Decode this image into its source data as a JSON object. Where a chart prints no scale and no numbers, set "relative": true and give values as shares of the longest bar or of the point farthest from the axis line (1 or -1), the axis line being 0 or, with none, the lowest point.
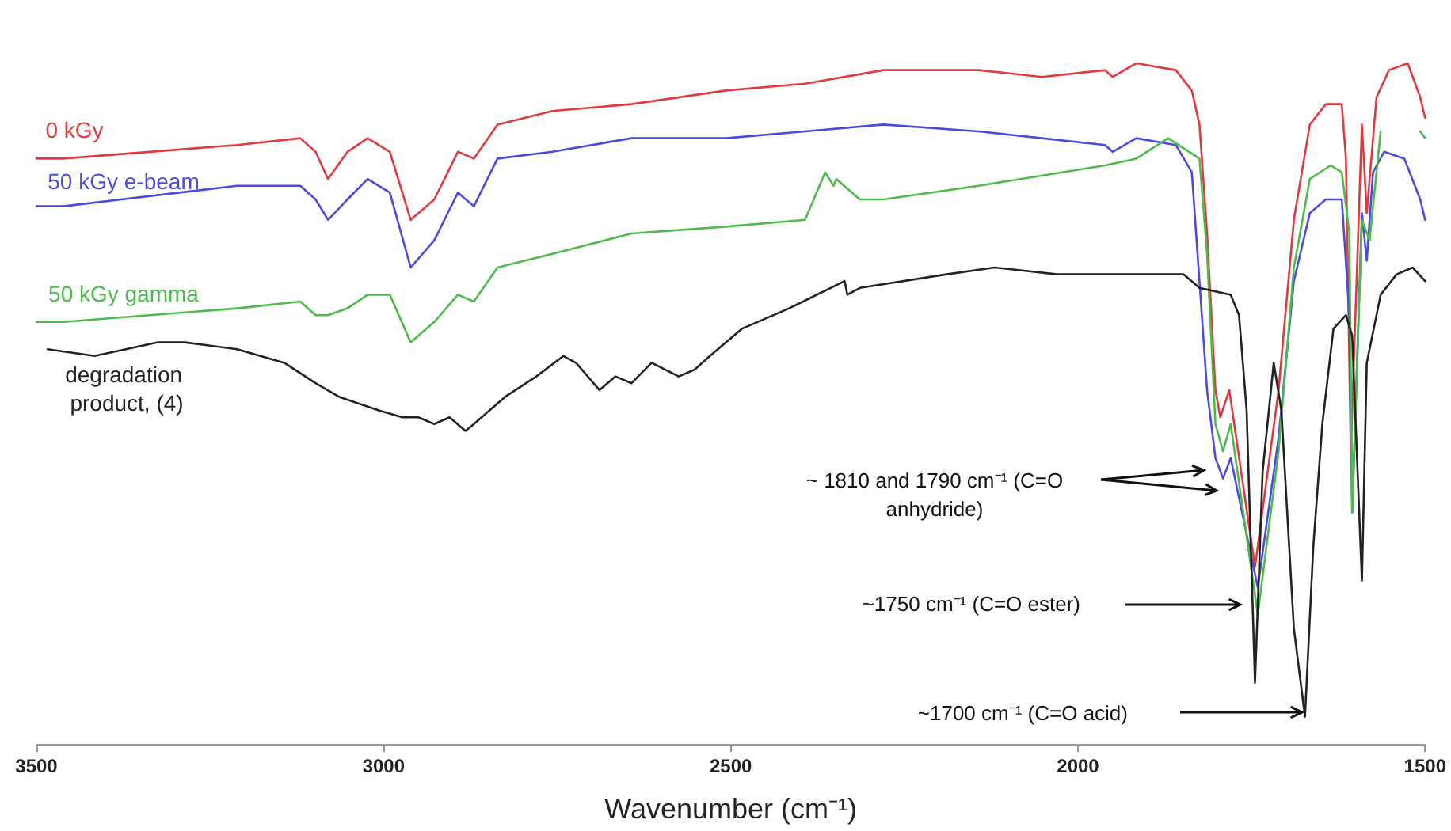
{
  "chart_data": {
    "type": "line",
    "relative": true,
    "xlabel": "Wavenumber (cm⁻¹)",
    "xlim": [
      3500,
      1500
    ],
    "xticks": [
      3500,
      3000,
      2500,
      2000,
      1500
    ],
    "grid": false,
    "legend": false,
    "marker": "none",
    "line_style": "solid",
    "series": [
      {
        "name": "0 kGy",
        "color": "#e0393e",
        "x": [
          3500,
          3461,
          3211,
          3120,
          3098,
          3080,
          3052,
          3023,
          2991,
          2961,
          2927,
          2893,
          2870,
          2836,
          2757,
          2643,
          2507,
          2393,
          2280,
          2143,
          2052,
          1961,
          1950,
          1916,
          1859,
          1836,
          1825,
          1814,
          1802,
          1795,
          1782,
          1745,
          1711,
          1689,
          1666,
          1643,
          1620,
          1614,
          1607,
          1591,
          1584,
          1570,
          1552,
          1525,
          1507,
          1500
        ],
        "values": [
          0.86,
          0.86,
          0.88,
          0.89,
          0.87,
          0.83,
          0.87,
          0.89,
          0.87,
          0.77,
          0.8,
          0.87,
          0.86,
          0.91,
          0.93,
          0.94,
          0.96,
          0.97,
          0.99,
          0.99,
          0.98,
          0.99,
          0.98,
          1.0,
          0.99,
          0.96,
          0.91,
          0.75,
          0.52,
          0.48,
          0.52,
          0.26,
          0.52,
          0.77,
          0.91,
          0.94,
          0.94,
          0.86,
          0.43,
          0.91,
          0.78,
          0.95,
          0.99,
          1.0,
          0.95,
          0.92
        ]
      },
      {
        "name": "50 kGy e-beam",
        "color": "#4a4ae0",
        "x": [
          3500,
          3461,
          3211,
          3120,
          3098,
          3080,
          3052,
          3023,
          2991,
          2961,
          2927,
          2893,
          2870,
          2836,
          2757,
          2643,
          2507,
          2393,
          2280,
          2143,
          2052,
          1961,
          1950,
          1916,
          1859,
          1836,
          1814,
          1802,
          1791,
          1780,
          1741,
          1711,
          1689,
          1666,
          1643,
          1620,
          1609,
          1605,
          1591,
          1584,
          1575,
          1559,
          1530,
          1507,
          1500
        ],
        "values": [
          0.79,
          0.79,
          0.82,
          0.82,
          0.8,
          0.77,
          0.8,
          0.83,
          0.81,
          0.7,
          0.74,
          0.81,
          0.79,
          0.86,
          0.87,
          0.89,
          0.89,
          0.9,
          0.91,
          0.9,
          0.89,
          0.88,
          0.87,
          0.89,
          0.88,
          0.84,
          0.52,
          0.42,
          0.39,
          0.42,
          0.23,
          0.45,
          0.68,
          0.78,
          0.8,
          0.8,
          0.63,
          0.34,
          0.78,
          0.71,
          0.84,
          0.87,
          0.86,
          0.8,
          0.77
        ]
      },
      {
        "name": "50 kGy gamma",
        "color": "#4cbb4c",
        "x": [
          3500,
          3461,
          3211,
          3120,
          3098,
          3080,
          3052,
          3023,
          2991,
          2961,
          2927,
          2893,
          2870,
          2836,
          2757,
          2643,
          2507,
          2393,
          2364,
          2352,
          2348,
          2314,
          2280,
          2143,
          1961,
          1916,
          1870,
          1825,
          1814,
          1802,
          1791,
          1780,
          1741,
          1711,
          1689,
          1666,
          1636,
          1620,
          1609,
          1605,
          1591,
          1580,
          1570,
          1564,
          1540,
          1507,
          1500
        ],
        "values": [
          0.62,
          0.62,
          0.64,
          0.65,
          0.63,
          0.63,
          0.64,
          0.66,
          0.66,
          0.59,
          0.62,
          0.66,
          0.65,
          0.7,
          0.72,
          0.75,
          0.76,
          0.77,
          0.84,
          0.82,
          0.83,
          0.8,
          0.8,
          0.82,
          0.85,
          0.86,
          0.89,
          0.86,
          0.72,
          0.47,
          0.43,
          0.47,
          0.19,
          0.43,
          0.7,
          0.83,
          0.85,
          0.84,
          0.75,
          0.34,
          0.77,
          0.74,
          0.84,
          0.9,
          null,
          0.9,
          0.89
        ]
      },
      {
        "name": "degradation product, (4)",
        "color": "#222222",
        "x": [
          3484,
          3416,
          3325,
          3286,
          3211,
          3143,
          3098,
          3064,
          3007,
          2973,
          2950,
          2927,
          2905,
          2882,
          2870,
          2825,
          2780,
          2741,
          2723,
          2689,
          2666,
          2643,
          2614,
          2575,
          2552,
          2530,
          2484,
          2416,
          2336,
          2332,
          2314,
          2189,
          2120,
          2030,
          1961,
          1848,
          1825,
          1780,
          1768,
          1757,
          1745,
          1734,
          1718,
          1707,
          1689,
          1673,
          1661,
          1648,
          1632,
          1614,
          1605,
          1591,
          1584,
          1564,
          1541,
          1518,
          1500
        ],
        "values": [
          0.58,
          0.57,
          0.59,
          0.59,
          0.58,
          0.56,
          0.53,
          0.51,
          0.49,
          0.48,
          0.48,
          0.47,
          0.48,
          0.46,
          0.47,
          0.51,
          0.54,
          0.57,
          0.56,
          0.52,
          0.54,
          0.53,
          0.56,
          0.54,
          0.55,
          0.57,
          0.61,
          0.64,
          0.68,
          0.66,
          0.67,
          0.69,
          0.7,
          0.69,
          0.69,
          0.69,
          0.67,
          0.66,
          0.63,
          0.49,
          0.09,
          0.4,
          0.56,
          0.49,
          0.17,
          0.04,
          0.29,
          0.47,
          0.61,
          0.63,
          0.6,
          0.24,
          0.56,
          0.66,
          0.69,
          0.7,
          0.68
        ]
      }
    ],
    "annotations": [
      "~ 1810 and 1790 cm⁻¹ (C=O anhydride)",
      "~1750 cm⁻¹ (C=O ester)",
      "~1700 cm⁻¹ (C=O acid)"
    ]
  }
}
